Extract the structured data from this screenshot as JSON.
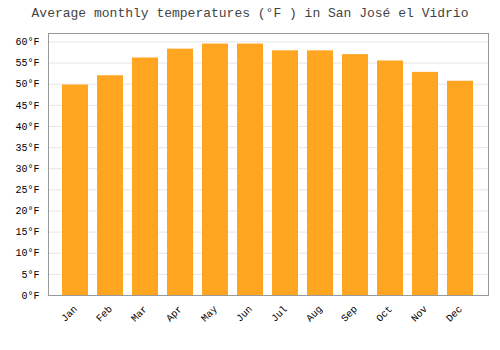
{
  "chart_data": {
    "type": "bar",
    "title": "Average monthly temperatures (°F ) in San José el Vidrio",
    "categories": [
      "Jan",
      "Feb",
      "Mar",
      "Apr",
      "May",
      "Jun",
      "Jul",
      "Aug",
      "Sep",
      "Oct",
      "Nov",
      "Dec"
    ],
    "values": [
      49.8,
      52.0,
      56.2,
      58.3,
      59.5,
      59.5,
      57.9,
      57.9,
      57.0,
      55.5,
      52.8,
      50.7
    ],
    "color": "#FFA520",
    "ylim": [
      0,
      62
    ],
    "yticks": [
      {
        "value": 0,
        "label": "0°F"
      },
      {
        "value": 5,
        "label": "5°F"
      },
      {
        "value": 10,
        "label": "10°F"
      },
      {
        "value": 15,
        "label": "15°F"
      },
      {
        "value": 20,
        "label": "20°F"
      },
      {
        "value": 25,
        "label": "25°F"
      },
      {
        "value": 30,
        "label": "30°F"
      },
      {
        "value": 35,
        "label": "35°F"
      },
      {
        "value": 40,
        "label": "40°F"
      },
      {
        "value": 45,
        "label": "45°F"
      },
      {
        "value": 50,
        "label": "50°F"
      },
      {
        "value": 55,
        "label": "55°F"
      },
      {
        "value": 60,
        "label": "60°F"
      }
    ],
    "grid": true
  }
}
